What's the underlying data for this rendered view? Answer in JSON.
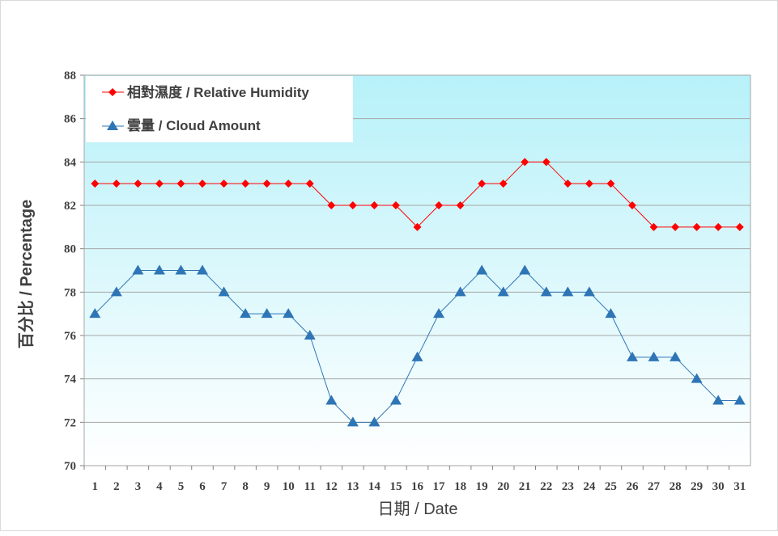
{
  "chart_data": {
    "type": "line",
    "xlabel": "日期 / Date",
    "ylabel": "百分比 / Percentage",
    "ylim": [
      70,
      88
    ],
    "yticks": [
      70,
      72,
      74,
      76,
      78,
      80,
      82,
      84,
      86,
      88
    ],
    "x": [
      1,
      2,
      3,
      4,
      5,
      6,
      7,
      8,
      9,
      10,
      11,
      12,
      13,
      14,
      15,
      16,
      17,
      18,
      19,
      20,
      21,
      22,
      23,
      24,
      25,
      26,
      27,
      28,
      29,
      30,
      31
    ],
    "grid": "horizontal",
    "legend_position": "top-left",
    "series": [
      {
        "name": "相對濕度 / Relative Humidity",
        "color": "#ff0000",
        "marker": "diamond",
        "values": [
          83,
          83,
          83,
          83,
          83,
          83,
          83,
          83,
          83,
          83,
          83,
          82,
          82,
          82,
          82,
          81,
          82,
          82,
          83,
          83,
          84,
          84,
          83,
          83,
          83,
          82,
          81,
          81,
          81,
          81,
          81
        ]
      },
      {
        "name": "雲量 / Cloud Amount",
        "color": "#2e75b6",
        "marker": "triangle",
        "values": [
          77,
          78,
          79,
          79,
          79,
          79,
          78,
          77,
          77,
          77,
          76,
          73,
          72,
          72,
          73,
          75,
          77,
          78,
          79,
          78,
          79,
          78,
          78,
          78,
          77,
          75,
          75,
          75,
          74,
          73,
          73
        ]
      }
    ]
  }
}
